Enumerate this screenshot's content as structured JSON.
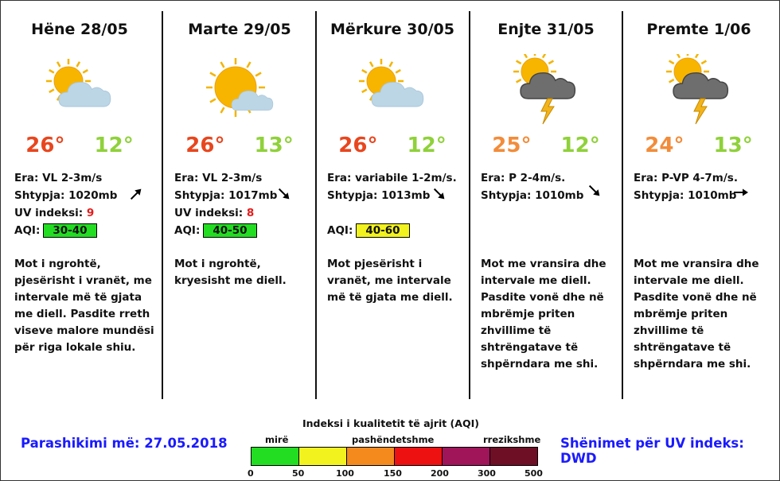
{
  "days": [
    {
      "title": "Hëne 28/05",
      "max": "26°",
      "min": "12°",
      "maxColor": "#e8461e",
      "minColor": "#8fd13a",
      "wind": "Era: VL 2-3m/s",
      "pressure": "Shtypja: 1020mb",
      "uvLabel": "UV indeksi: ",
      "uv": "9",
      "aqiLabel": "AQI:",
      "aqi": "30-40",
      "aqiColor": "#22dd22",
      "windDir": "arrow-up-right",
      "icon": "sun-cloud-icon",
      "desc": "Mot i ngrohtë, pjesërisht i vranët, me intervale më të gjata me diell.  Pasdite rreth viseve malore mundësi për riga lokale shiu."
    },
    {
      "title": "Marte 29/05",
      "max": "26°",
      "min": "13°",
      "maxColor": "#e8461e",
      "minColor": "#8fd13a",
      "wind": "Era: VL 2-3m/s",
      "pressure": "Shtypja: 1017mb",
      "uvLabel": "UV indeksi: ",
      "uv": "8",
      "aqiLabel": "AQI:",
      "aqi": "40-50",
      "aqiColor": "#22dd22",
      "windDir": "arrow-down-right",
      "icon": "sun-small-cloud-icon",
      "desc": "Mot i ngrohtë, kryesisht me diell."
    },
    {
      "title": "Mërkure 30/05",
      "max": "26°",
      "min": "12°",
      "maxColor": "#e8461e",
      "minColor": "#8fd13a",
      "wind": "Era: variabile 1-2m/s.",
      "pressure": "Shtypja: 1013mb",
      "aqiLabel": "AQI:",
      "aqi": "40-60",
      "aqiColor": "#f2f21e",
      "windDir": "arrow-down-right",
      "icon": "sun-cloud-icon",
      "desc": "Mot pjesërisht i vranët, me intervale më të gjata me diell."
    },
    {
      "title": "Enjte 31/05",
      "max": "25°",
      "min": "12°",
      "maxColor": "#f28c3a",
      "minColor": "#8fd13a",
      "wind": "Era: P 2-4m/s.",
      "pressure": "Shtypja: 1010mb",
      "windDir": "arrow-down-right",
      "icon": "sun-storm-cloud-icon",
      "desc": "Mot me vransira dhe intervale me diell. Pasdite vonë dhe në mbrëmje priten zhvillime të shtrëngatave të shpërndara me shi."
    },
    {
      "title": "Premte 1/06",
      "max": "24°",
      "min": "13°",
      "maxColor": "#f28c3a",
      "minColor": "#8fd13a",
      "wind": "Era: P-VP 4-7m/s.",
      "pressure": "Shtypja: 1010mb",
      "windDir": "arrow-right",
      "icon": "sun-storm-cloud-icon",
      "desc": "Mot me vransira dhe intervale me diell. Pasdite vonë dhe në mbrëmje priten zhvillime të shtrëngatave të shpërndara me shi."
    }
  ],
  "footer": {
    "forecast": "Parashikimi më: 27.05.2018",
    "uvNote": "Shënimet për UV indeks: DWD"
  },
  "legend": {
    "title": "Indeksi i kualitetit të ajrit (AQI)",
    "labels": [
      "mirë",
      "pashëndetshme",
      "rrezikshme"
    ],
    "colors": [
      "#22dd22",
      "#f2f21e",
      "#f48a1e",
      "#ee1111",
      "#a0145a",
      "#6e0f26"
    ],
    "ticks": [
      "0",
      "50",
      "100",
      "150",
      "200",
      "300",
      "500"
    ]
  }
}
